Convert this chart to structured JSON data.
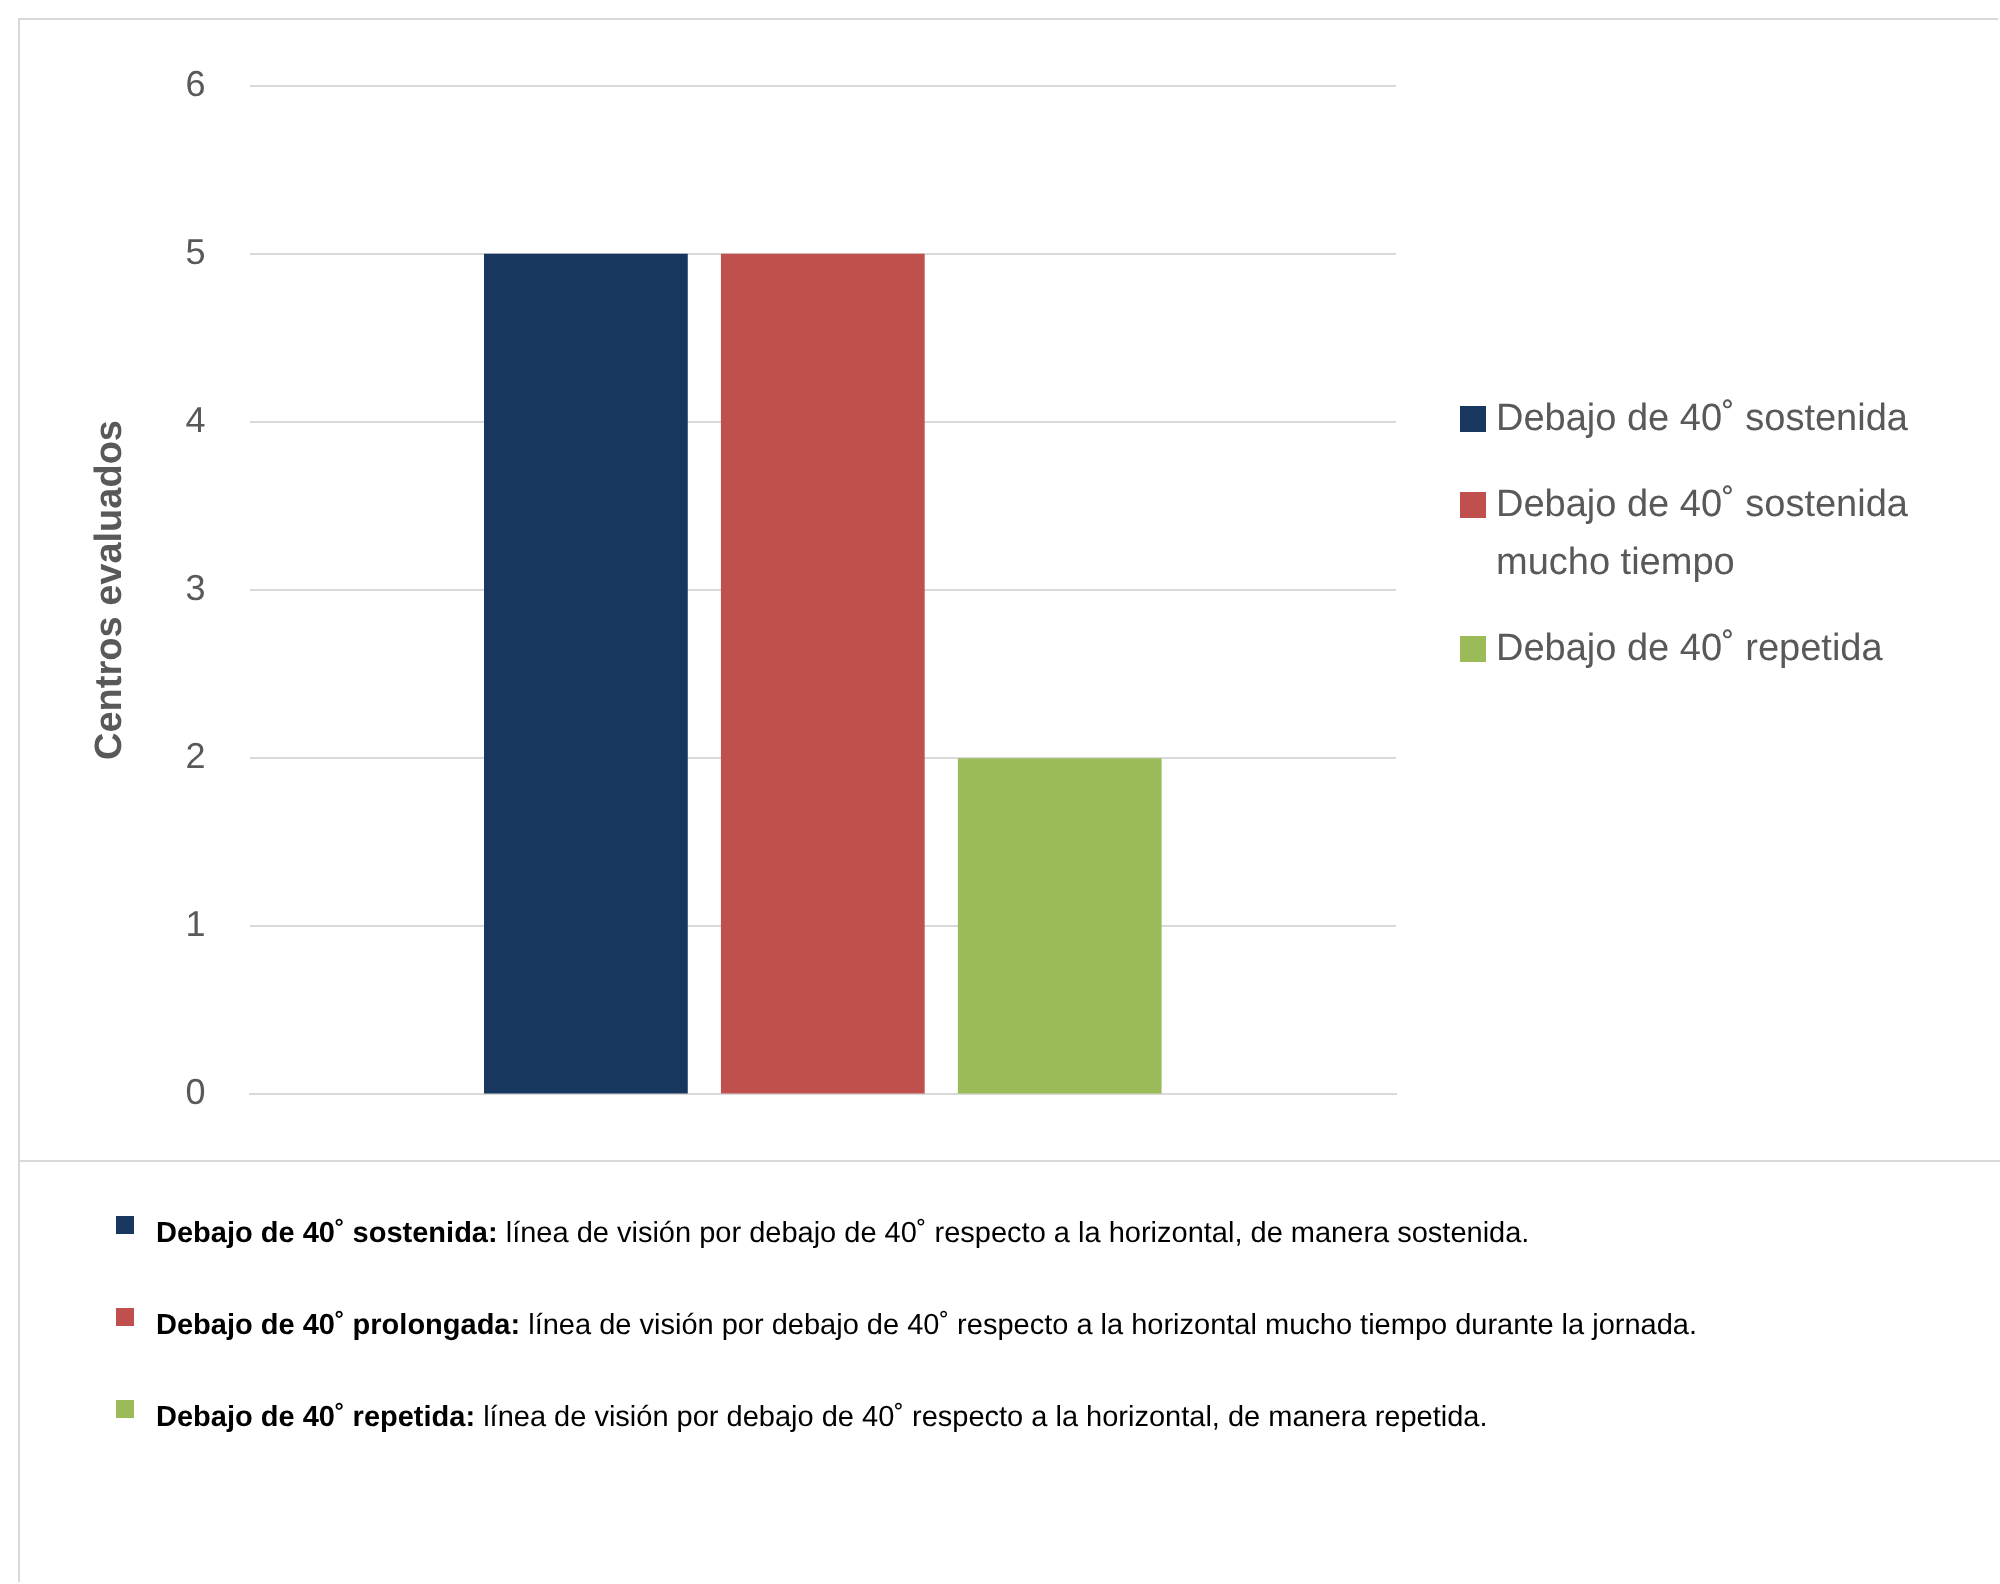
{
  "chart_data": {
    "type": "bar",
    "ylabel": "Centros evaluados",
    "categories": [
      null
    ],
    "series": [
      {
        "name": "Debajo de 40˚ sostenida",
        "color": "#17375e",
        "values": [
          5
        ]
      },
      {
        "name": "Debajo de 40˚ sostenida mucho tiempo",
        "color": "#c0504d",
        "values": [
          5
        ]
      },
      {
        "name": "Debajo de 40˚ repetida",
        "color": "#9bbb59",
        "values": [
          2
        ]
      }
    ],
    "ylim": [
      0,
      6
    ],
    "yticks": [
      0,
      1,
      2,
      3,
      4,
      5,
      6
    ],
    "grid": "y",
    "legend": "right",
    "annotations": [
      "Debajo de 40˚ sostenida: línea de visión por debajo de 40˚ respecto a la horizontal, de manera sostenida.",
      "Debajo de 40˚ prolongada: línea de visión por debajo de 40˚ respecto a la horizontal mucho tiempo durante la jornada.",
      "Debajo de 40˚ repetida: línea de visión por debajo de 40˚ respecto a la horizontal, de manera repetida."
    ]
  }
}
